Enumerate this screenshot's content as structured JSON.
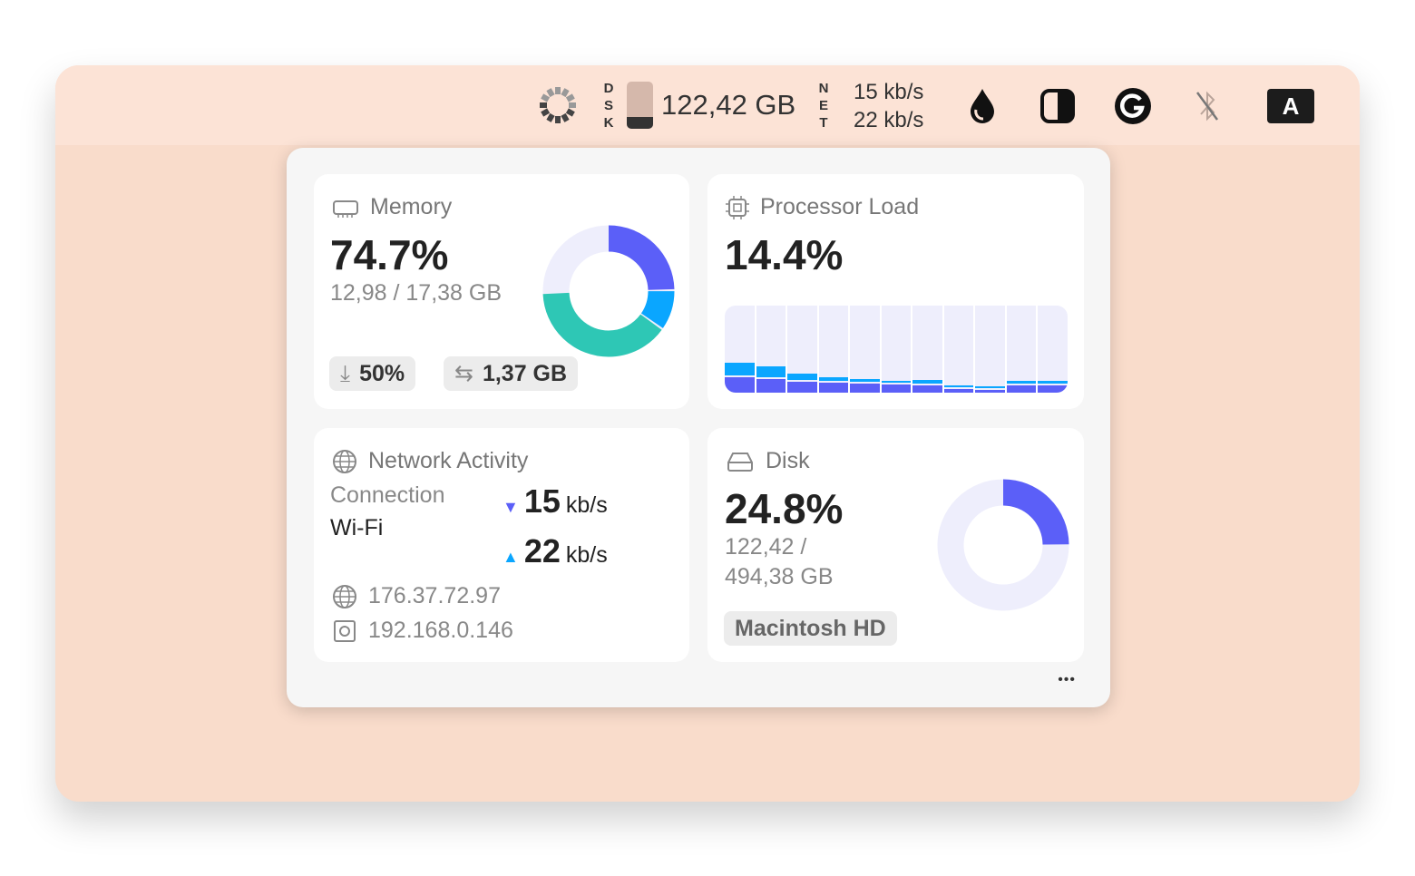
{
  "menubar": {
    "dsk_label": [
      "D",
      "S",
      "K"
    ],
    "disk_value": "122,42 GB",
    "disk_fill": 0.248,
    "net_label": [
      "N",
      "E",
      "T"
    ],
    "net_down": "15 kb/s",
    "net_up": "22 kb/s",
    "icons": [
      "cpu-ring-icon",
      "drop-icon",
      "contrast-icon",
      "grammarly-icon",
      "bluetooth-off-icon",
      "input-source-icon"
    ],
    "input_source": "A"
  },
  "memory": {
    "title": "Memory",
    "percent": "74.7%",
    "usage": "12,98 / 17,38 GB",
    "pressure": "50%",
    "swap": "1,37 GB",
    "segments": [
      {
        "value": 25,
        "color": "#5b5ff8"
      },
      {
        "value": 10,
        "color": "#0aa6ff"
      },
      {
        "value": 39.7,
        "color": "#2ec7b5"
      }
    ],
    "track_color": "#eeeefc"
  },
  "processor": {
    "title": "Processor Load",
    "percent": "14.4%",
    "bars": [
      [
        18,
        14
      ],
      [
        16,
        12
      ],
      [
        12,
        8
      ],
      [
        11,
        5
      ],
      [
        10,
        4
      ],
      [
        9,
        3
      ],
      [
        8,
        5
      ],
      [
        4,
        2
      ],
      [
        3,
        2
      ],
      [
        8,
        3
      ],
      [
        8,
        4
      ]
    ],
    "colors": [
      "#5b5ff8",
      "#0aa6ff"
    ],
    "track_color": "#eeeefc"
  },
  "network": {
    "title": "Network Activity",
    "connection_label": "Connection",
    "connection": "Wi-Fi",
    "down_value": "15",
    "down_unit": "kb/s",
    "up_value": "22",
    "up_unit": "kb/s",
    "public_ip": "176.37.72.97",
    "local_ip": "192.168.0.146",
    "down_color": "#5b5ff8",
    "up_color": "#0aa6ff"
  },
  "disk": {
    "title": "Disk",
    "percent": "24.8%",
    "usage_line1": "122,42 /",
    "usage_line2": "494,38 GB",
    "volume": "Macintosh HD",
    "fraction": 0.248,
    "color": "#5b5ff8"
  },
  "more": "•••"
}
